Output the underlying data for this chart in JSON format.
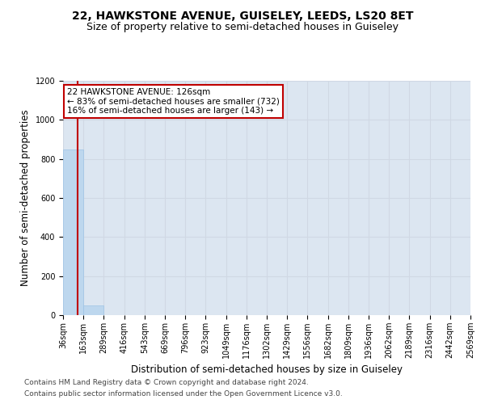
{
  "title_line1": "22, HAWKSTONE AVENUE, GUISELEY, LEEDS, LS20 8ET",
  "title_line2": "Size of property relative to semi-detached houses in Guiseley",
  "xlabel": "Distribution of semi-detached houses by size in Guiseley",
  "ylabel": "Number of semi-detached properties",
  "footnote1": "Contains HM Land Registry data © Crown copyright and database right 2024.",
  "footnote2": "Contains public sector information licensed under the Open Government Licence v3.0.",
  "annotation_line1": "22 HAWKSTONE AVENUE: 126sqm",
  "annotation_line2": "← 83% of semi-detached houses are smaller (732)",
  "annotation_line3": "16% of semi-detached houses are larger (143) →",
  "property_size": 126,
  "bin_edges": [
    36,
    163,
    289,
    416,
    543,
    669,
    796,
    923,
    1049,
    1176,
    1302,
    1429,
    1556,
    1682,
    1809,
    1936,
    2062,
    2189,
    2316,
    2442,
    2569
  ],
  "bin_counts": [
    850,
    50,
    0,
    0,
    0,
    0,
    0,
    0,
    0,
    0,
    0,
    0,
    0,
    0,
    0,
    0,
    0,
    0,
    0,
    0
  ],
  "bar_color": "#bdd7ee",
  "bar_edge_color": "#9dc3e6",
  "line_color": "#c00000",
  "annotation_box_color": "#c00000",
  "grid_color": "#d0d8e4",
  "background_color": "#dce6f1",
  "ylim": [
    0,
    1200
  ],
  "yticks": [
    0,
    200,
    400,
    600,
    800,
    1000,
    1200
  ],
  "title_fontsize": 10,
  "subtitle_fontsize": 9,
  "axis_label_fontsize": 8.5,
  "tick_fontsize": 7,
  "annotation_fontsize": 7.5,
  "footnote_fontsize": 6.5
}
